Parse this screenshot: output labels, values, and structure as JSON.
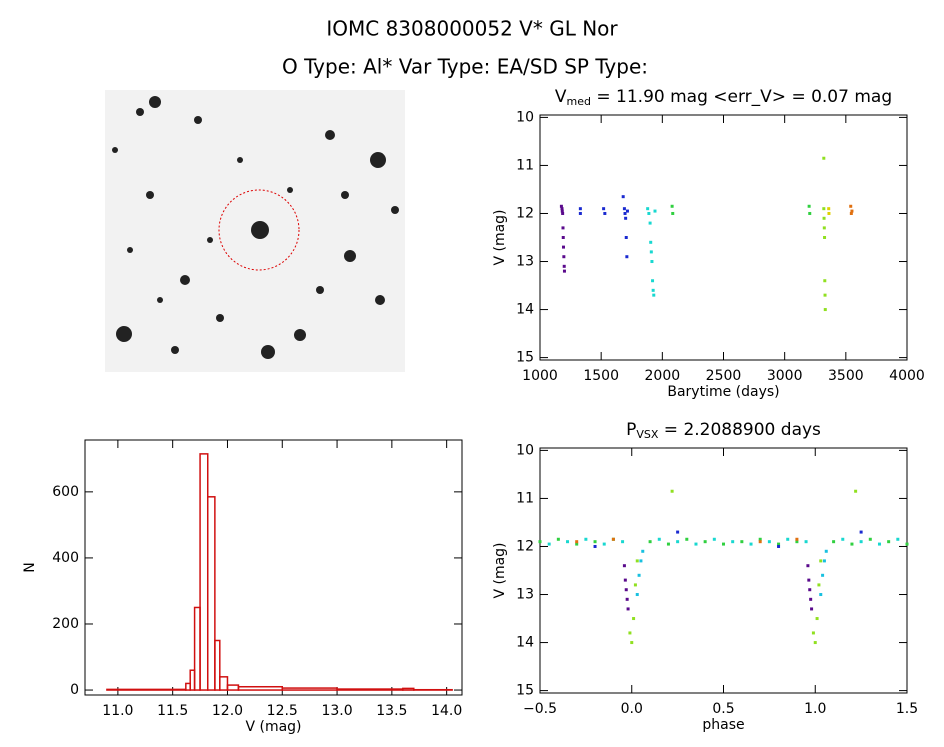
{
  "header": {
    "title": "IOMC 8308000052   V* GL Nor",
    "subtitle": "O Type: Al*  Var Type: EA/SD  SP Type:"
  },
  "chart_data": [
    {
      "type": "scatter",
      "title_parts": [
        "V",
        "med",
        " = 11.90 mag <err_V> = 0.07 mag"
      ],
      "x_label": "Barytime (days)",
      "y_label": "V (mag)",
      "xlim": [
        1000,
        4000
      ],
      "ylim": [
        15.05,
        9.95
      ],
      "xticks": [
        1000,
        1500,
        2000,
        2500,
        3000,
        3500,
        4000
      ],
      "yticks": [
        10,
        11,
        12,
        13,
        14,
        15
      ],
      "series": [
        {
          "color": "#5a0a8c",
          "x": [
            1175,
            1180,
            1182,
            1185,
            1188,
            1190,
            1192,
            1195,
            1198,
            1200
          ],
          "values": [
            11.85,
            11.9,
            11.95,
            12.0,
            12.3,
            12.5,
            12.7,
            12.9,
            13.1,
            13.2
          ]
        },
        {
          "color": "#1a2ad0",
          "x": [
            1330,
            1330,
            1520,
            1530,
            1680,
            1690,
            1695,
            1700,
            1705,
            1710,
            1715
          ],
          "values": [
            11.9,
            12.0,
            11.9,
            12.0,
            11.65,
            11.9,
            12.0,
            12.1,
            12.5,
            12.9,
            11.95
          ]
        },
        {
          "color": "#18d8d0",
          "x": [
            1880,
            1890,
            1900,
            1905,
            1910,
            1915,
            1920,
            1925,
            1930,
            1940
          ],
          "values": [
            11.9,
            12.0,
            12.2,
            12.6,
            12.8,
            13.0,
            13.4,
            13.6,
            13.7,
            11.95
          ]
        },
        {
          "color": "#30d040",
          "x": [
            2080,
            2085,
            3200,
            3205
          ],
          "values": [
            11.85,
            12.0,
            11.85,
            12.0
          ]
        },
        {
          "color": "#90e020",
          "x": [
            3320,
            3320,
            3322,
            3324,
            3326,
            3328,
            3330,
            3332
          ],
          "values": [
            10.85,
            11.9,
            12.1,
            12.3,
            12.5,
            13.4,
            13.7,
            14.0
          ]
        },
        {
          "color": "#e0d000",
          "x": [
            3360,
            3362
          ],
          "values": [
            11.9,
            12.0
          ]
        },
        {
          "color": "#e07010",
          "x": [
            3540,
            3545,
            3550
          ],
          "values": [
            11.85,
            12.0,
            11.95
          ]
        }
      ]
    },
    {
      "type": "histogram",
      "x_label": "V (mag)",
      "y_label": "N",
      "color": "#d01010",
      "xlim": [
        10.7,
        14.14
      ],
      "ylim": [
        -15,
        757
      ],
      "xticks": [
        {
          "value": 11,
          "label": "11.0"
        },
        {
          "value": 11.5,
          "label": "11.5"
        },
        {
          "value": 12,
          "label": "12.0"
        },
        {
          "value": 12.5,
          "label": "12.5"
        },
        {
          "value": 13,
          "label": "13.0"
        },
        {
          "value": 13.5,
          "label": "13.5"
        },
        {
          "value": 14,
          "label": "14.0"
        }
      ],
      "yticks": [
        0,
        200,
        400,
        600
      ],
      "bins": [
        10.9,
        11.62,
        11.66,
        11.7,
        11.75,
        11.82,
        11.885,
        11.93,
        12.0,
        12.1,
        12.5,
        13.0,
        13.6,
        13.7,
        14.05
      ],
      "values": [
        2,
        20,
        60,
        250,
        715,
        585,
        150,
        40,
        15,
        10,
        6,
        3,
        5,
        1
      ]
    },
    {
      "type": "scatter",
      "title_parts": [
        "P",
        "VSX",
        " = 2.2088900 days"
      ],
      "x_label": "phase",
      "y_label": "V (mag)",
      "xlim": [
        -0.5,
        1.5
      ],
      "ylim": [
        15.05,
        9.95
      ],
      "xticks": [
        {
          "value": -0.5,
          "label": "−0.5"
        },
        {
          "value": 0,
          "label": "0.0"
        },
        {
          "value": 0.5,
          "label": "0.5"
        },
        {
          "value": 1,
          "label": "1.0"
        },
        {
          "value": 1.5,
          "label": "1.5"
        }
      ],
      "yticks": [
        10,
        11,
        12,
        13,
        14,
        15
      ],
      "series": [
        {
          "color": "#30d040",
          "x": [
            -0.5,
            -0.4,
            -0.3,
            -0.2,
            -0.1,
            0.1,
            0.2,
            0.3,
            0.4,
            0.5,
            0.6,
            0.7,
            0.8,
            0.9,
            1.1,
            1.2,
            1.3,
            1.4,
            1.5
          ],
          "values": [
            11.9,
            11.85,
            11.95,
            11.9,
            11.85,
            11.9,
            11.95,
            11.85,
            11.9,
            11.95,
            11.9,
            11.85,
            11.95,
            11.9,
            11.9,
            11.95,
            11.85,
            11.9,
            11.95
          ]
        },
        {
          "color": "#18d8d0",
          "x": [
            -0.45,
            -0.35,
            -0.25,
            -0.15,
            -0.05,
            0.15,
            0.25,
            0.35,
            0.45,
            0.55,
            0.65,
            0.75,
            0.85,
            0.95,
            1.15,
            1.25,
            1.35,
            1.45
          ],
          "values": [
            11.95,
            11.9,
            11.85,
            11.95,
            11.9,
            11.85,
            11.9,
            11.95,
            11.85,
            11.9,
            11.95,
            11.9,
            11.85,
            11.9,
            11.85,
            11.9,
            11.95,
            11.85
          ]
        },
        {
          "color": "#5a0a8c",
          "x": [
            -0.04,
            -0.035,
            -0.03,
            -0.025,
            -0.02,
            0.96,
            0.965,
            0.97,
            0.975,
            0.98
          ],
          "values": [
            12.4,
            12.7,
            12.9,
            13.1,
            13.3,
            12.4,
            12.7,
            12.9,
            13.1,
            13.3
          ]
        },
        {
          "color": "#90e020",
          "x": [
            -0.01,
            0,
            0.01,
            0.02,
            0.03,
            0.99,
            1.0,
            1.01,
            1.02,
            1.03,
            0.22,
            1.22
          ],
          "values": [
            13.8,
            14.0,
            13.5,
            12.8,
            12.3,
            13.8,
            14.0,
            13.5,
            12.8,
            12.3,
            10.85,
            10.85
          ]
        },
        {
          "color": "#18c0e0",
          "x": [
            0.03,
            0.04,
            0.05,
            0.06,
            1.03,
            1.04,
            1.05,
            1.06
          ],
          "values": [
            13.0,
            12.6,
            12.3,
            12.1,
            13.0,
            12.6,
            12.3,
            12.1
          ]
        },
        {
          "color": "#1a2ad0",
          "x": [
            0.25,
            1.25,
            -0.2,
            0.8
          ],
          "values": [
            11.7,
            11.7,
            12.0,
            12.0
          ]
        },
        {
          "color": "#e07010",
          "x": [
            -0.1,
            0.9,
            -0.3,
            0.7
          ],
          "values": [
            11.85,
            11.85,
            11.9,
            11.9
          ]
        }
      ]
    }
  ]
}
